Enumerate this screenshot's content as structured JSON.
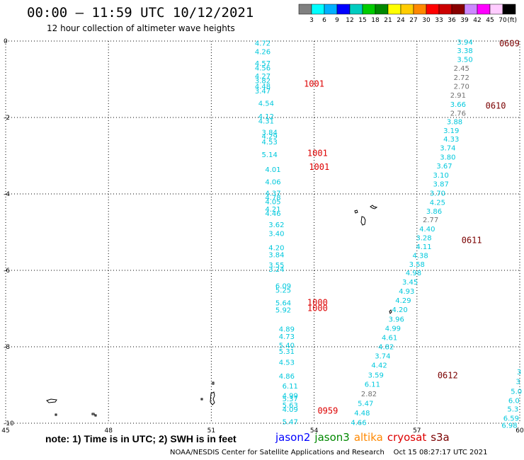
{
  "title": "00:00 – 11:59 UTC 10/12/2021",
  "subtitle": "12 hour collection of altimeter wave heights",
  "colorbar": {
    "colors": [
      "#808080",
      "#00ffff",
      "#00b0ff",
      "#0000ff",
      "#00ccc0",
      "#00cc00",
      "#008800",
      "#ffff00",
      "#ffcc00",
      "#ff8800",
      "#ff0000",
      "#cc0000",
      "#880000",
      "#cc88ff",
      "#ff00ff",
      "#ffccff",
      "#000000"
    ],
    "labels": [
      "3",
      "6",
      "9",
      "12",
      "15",
      "18",
      "21",
      "24",
      "27",
      "30",
      "33",
      "36",
      "39",
      "42",
      "45",
      "70"
    ],
    "unit": "(ft)"
  },
  "axes": {
    "x_ticks": [
      45,
      48,
      51,
      54,
      57,
      60
    ],
    "y_ticks": [
      0,
      -2,
      -4,
      -6,
      -8,
      -10
    ],
    "x_range": [
      45,
      60
    ],
    "y_range": [
      -10,
      0
    ]
  },
  "colors": {
    "cyan": "#00c8dc",
    "gray": "#707070",
    "red": "#dd0000",
    "darkred": "#7a0000"
  },
  "tracks": [
    {
      "name": "left-track",
      "points": [
        {
          "x": 52.5,
          "y": -0.05,
          "v": "4.72",
          "c": "cyan"
        },
        {
          "x": 52.5,
          "y": -0.27,
          "v": "4.26",
          "c": "cyan"
        },
        {
          "x": 52.5,
          "y": -0.57,
          "v": "4.57",
          "c": "cyan"
        },
        {
          "x": 52.5,
          "y": -0.69,
          "v": "4.56",
          "c": "cyan"
        },
        {
          "x": 52.5,
          "y": -0.91,
          "v": "4.27",
          "c": "cyan"
        },
        {
          "x": 52.5,
          "y": -1.03,
          "v": "3.82",
          "c": "cyan"
        },
        {
          "x": 52.5,
          "y": -1.18,
          "v": "4.48",
          "c": "cyan"
        },
        {
          "x": 52.5,
          "y": -1.3,
          "v": "3.47",
          "c": "cyan"
        },
        {
          "x": 52.6,
          "y": -1.62,
          "v": "4.54",
          "c": "cyan"
        },
        {
          "x": 52.6,
          "y": -1.96,
          "v": "4.12",
          "c": "cyan"
        },
        {
          "x": 52.6,
          "y": -2.08,
          "v": "4.31",
          "c": "cyan"
        },
        {
          "x": 52.7,
          "y": -2.38,
          "v": "3.84",
          "c": "cyan"
        },
        {
          "x": 52.7,
          "y": -2.48,
          "v": "4.29",
          "c": "cyan"
        },
        {
          "x": 52.7,
          "y": -2.63,
          "v": "4.53",
          "c": "cyan"
        },
        {
          "x": 52.7,
          "y": -2.96,
          "v": "5.14",
          "c": "cyan"
        },
        {
          "x": 52.8,
          "y": -3.35,
          "v": "4.01",
          "c": "cyan"
        },
        {
          "x": 52.8,
          "y": -3.68,
          "v": "4.06",
          "c": "cyan"
        },
        {
          "x": 52.8,
          "y": -3.97,
          "v": "4.37",
          "c": "cyan"
        },
        {
          "x": 52.8,
          "y": -4.08,
          "v": "4.78",
          "c": "cyan"
        },
        {
          "x": 52.8,
          "y": -4.19,
          "v": "4.05",
          "c": "cyan"
        },
        {
          "x": 52.8,
          "y": -4.39,
          "v": "4.21",
          "c": "cyan"
        },
        {
          "x": 52.8,
          "y": -4.5,
          "v": "4.46",
          "c": "cyan"
        },
        {
          "x": 52.9,
          "y": -4.8,
          "v": "3.62",
          "c": "cyan"
        },
        {
          "x": 52.9,
          "y": -5.03,
          "v": "3.40",
          "c": "cyan"
        },
        {
          "x": 52.9,
          "y": -5.4,
          "v": "4.20",
          "c": "cyan"
        },
        {
          "x": 52.9,
          "y": -5.58,
          "v": "3.84",
          "c": "cyan"
        },
        {
          "x": 52.9,
          "y": -5.85,
          "v": "3.55",
          "c": "cyan"
        },
        {
          "x": 52.9,
          "y": -5.96,
          "v": "3.24",
          "c": "cyan"
        },
        {
          "x": 53.1,
          "y": -6.4,
          "v": "6.09",
          "c": "cyan"
        },
        {
          "x": 53.1,
          "y": -6.51,
          "v": "5.25",
          "c": "cyan"
        },
        {
          "x": 53.1,
          "y": -6.84,
          "v": "5.64",
          "c": "cyan"
        },
        {
          "x": 53.1,
          "y": -7.03,
          "v": "5.92",
          "c": "cyan"
        },
        {
          "x": 53.2,
          "y": -7.53,
          "v": "4.89",
          "c": "cyan"
        },
        {
          "x": 53.2,
          "y": -7.72,
          "v": "4.73",
          "c": "cyan"
        },
        {
          "x": 53.2,
          "y": -7.95,
          "v": "5.40",
          "c": "cyan"
        },
        {
          "x": 53.2,
          "y": -8.11,
          "v": "5.31",
          "c": "cyan"
        },
        {
          "x": 53.2,
          "y": -8.4,
          "v": "4.53",
          "c": "cyan"
        },
        {
          "x": 53.2,
          "y": -8.76,
          "v": "4.86",
          "c": "cyan"
        },
        {
          "x": 53.3,
          "y": -9.02,
          "v": "6.11",
          "c": "cyan"
        },
        {
          "x": 53.3,
          "y": -9.27,
          "v": "4.99",
          "c": "cyan"
        },
        {
          "x": 53.3,
          "y": -9.35,
          "v": "5.37",
          "c": "cyan"
        },
        {
          "x": 53.3,
          "y": -9.52,
          "v": "5.63",
          "c": "cyan"
        },
        {
          "x": 53.3,
          "y": -9.63,
          "v": "4.09",
          "c": "cyan"
        },
        {
          "x": 53.3,
          "y": -9.95,
          "v": "5.47",
          "c": "cyan"
        }
      ]
    },
    {
      "name": "middle-track",
      "points": [
        {
          "x": 58.4,
          "y": -0.02,
          "v": "3.94",
          "c": "cyan"
        },
        {
          "x": 58.4,
          "y": -0.24,
          "v": "3.38",
          "c": "cyan"
        },
        {
          "x": 58.4,
          "y": -0.47,
          "v": "3.50",
          "c": "cyan"
        },
        {
          "x": 58.3,
          "y": -0.7,
          "v": "2.45",
          "c": "gray"
        },
        {
          "x": 58.3,
          "y": -0.94,
          "v": "2.72",
          "c": "gray"
        },
        {
          "x": 58.3,
          "y": -1.18,
          "v": "2.70",
          "c": "gray"
        },
        {
          "x": 58.2,
          "y": -1.41,
          "v": "2.91",
          "c": "gray"
        },
        {
          "x": 58.2,
          "y": -1.65,
          "v": "3.66",
          "c": "cyan"
        },
        {
          "x": 58.2,
          "y": -1.88,
          "v": "2.76",
          "c": "gray"
        },
        {
          "x": 58.1,
          "y": -2.1,
          "v": "3.88",
          "c": "cyan"
        },
        {
          "x": 58.0,
          "y": -2.33,
          "v": "3.19",
          "c": "cyan"
        },
        {
          "x": 58.0,
          "y": -2.56,
          "v": "4.33",
          "c": "cyan"
        },
        {
          "x": 57.9,
          "y": -2.79,
          "v": "3.74",
          "c": "cyan"
        },
        {
          "x": 57.9,
          "y": -3.03,
          "v": "3.80",
          "c": "cyan"
        },
        {
          "x": 57.8,
          "y": -3.26,
          "v": "3.67",
          "c": "cyan"
        },
        {
          "x": 57.7,
          "y": -3.5,
          "v": "3.10",
          "c": "cyan"
        },
        {
          "x": 57.7,
          "y": -3.73,
          "v": "3.87",
          "c": "cyan"
        },
        {
          "x": 57.6,
          "y": -3.97,
          "v": "3.70",
          "c": "cyan"
        },
        {
          "x": 57.6,
          "y": -4.21,
          "v": "4.25",
          "c": "cyan"
        },
        {
          "x": 57.5,
          "y": -4.44,
          "v": "3.86",
          "c": "cyan"
        },
        {
          "x": 57.4,
          "y": -4.67,
          "v": "2.77",
          "c": "gray"
        },
        {
          "x": 57.3,
          "y": -4.91,
          "v": "4.40",
          "c": "cyan"
        },
        {
          "x": 57.2,
          "y": -5.14,
          "v": "3.28",
          "c": "cyan"
        },
        {
          "x": 57.2,
          "y": -5.37,
          "v": "4.11",
          "c": "cyan"
        },
        {
          "x": 57.1,
          "y": -5.6,
          "v": "4.38",
          "c": "cyan"
        },
        {
          "x": 57.0,
          "y": -5.83,
          "v": "3.58",
          "c": "cyan"
        },
        {
          "x": 56.9,
          "y": -6.06,
          "v": "4.98",
          "c": "cyan"
        },
        {
          "x": 56.8,
          "y": -6.3,
          "v": "3.45",
          "c": "cyan"
        },
        {
          "x": 56.7,
          "y": -6.54,
          "v": "4.93",
          "c": "cyan"
        },
        {
          "x": 56.6,
          "y": -6.78,
          "v": "4.29",
          "c": "cyan"
        },
        {
          "x": 56.5,
          "y": -7.02,
          "v": "4.20",
          "c": "cyan"
        },
        {
          "x": 56.4,
          "y": -7.27,
          "v": "3.96",
          "c": "cyan"
        },
        {
          "x": 56.3,
          "y": -7.51,
          "v": "4.99",
          "c": "cyan"
        },
        {
          "x": 56.2,
          "y": -7.75,
          "v": "4.61",
          "c": "cyan"
        },
        {
          "x": 56.1,
          "y": -7.99,
          "v": "4.82",
          "c": "cyan"
        },
        {
          "x": 56.0,
          "y": -8.23,
          "v": "3.74",
          "c": "cyan"
        },
        {
          "x": 55.9,
          "y": -8.47,
          "v": "4.42",
          "c": "cyan"
        },
        {
          "x": 55.8,
          "y": -8.73,
          "v": "3.59",
          "c": "cyan"
        },
        {
          "x": 55.7,
          "y": -8.97,
          "v": "6.11",
          "c": "cyan"
        },
        {
          "x": 55.6,
          "y": -9.22,
          "v": "2.82",
          "c": "gray"
        },
        {
          "x": 55.5,
          "y": -9.47,
          "v": "5.47",
          "c": "cyan"
        },
        {
          "x": 55.4,
          "y": -9.72,
          "v": "4.48",
          "c": "cyan"
        },
        {
          "x": 55.3,
          "y": -9.97,
          "v": "4.66",
          "c": "cyan"
        }
      ]
    },
    {
      "name": "right-track",
      "points": [
        {
          "x": 59.98,
          "y": -8.65,
          "v": "3",
          "c": "cyan"
        },
        {
          "x": 59.95,
          "y": -8.9,
          "v": "3",
          "c": "cyan"
        },
        {
          "x": 59.9,
          "y": -9.16,
          "v": "5.0",
          "c": "cyan"
        },
        {
          "x": 59.83,
          "y": -9.4,
          "v": "6.0",
          "c": "cyan"
        },
        {
          "x": 59.8,
          "y": -9.62,
          "v": "5.3",
          "c": "cyan"
        },
        {
          "x": 59.75,
          "y": -9.86,
          "v": "6.59",
          "c": "cyan"
        },
        {
          "x": 59.7,
          "y": -10.05,
          "v": "6.98",
          "c": "cyan"
        }
      ]
    }
  ],
  "annotations": [
    {
      "x": 53.7,
      "y": -1.1,
      "v": "1001",
      "c": "red"
    },
    {
      "x": 53.8,
      "y": -2.92,
      "v": "1001",
      "c": "red"
    },
    {
      "x": 53.85,
      "y": -3.28,
      "v": "1001",
      "c": "red"
    },
    {
      "x": 53.8,
      "y": -6.82,
      "v": "1000",
      "c": "red"
    },
    {
      "x": 53.8,
      "y": -6.97,
      "v": "1000",
      "c": "red"
    },
    {
      "x": 54.1,
      "y": -9.66,
      "v": "0959",
      "c": "red"
    },
    {
      "x": 59.4,
      "y": -0.05,
      "v": "0609",
      "c": "darkred"
    },
    {
      "x": 59.0,
      "y": -1.68,
      "v": "0610",
      "c": "darkred"
    },
    {
      "x": 58.3,
      "y": -5.19,
      "v": "0611",
      "c": "darkred"
    },
    {
      "x": 57.6,
      "y": -8.73,
      "v": "0612",
      "c": "darkred"
    }
  ],
  "note": "note: 1) Time is in UTC; 2) SWH is in feet",
  "legend": [
    {
      "label": "jason2",
      "color": "#0000ff"
    },
    {
      "label": "jason3",
      "color": "#008800"
    },
    {
      "label": "altika",
      "color": "#ff8800"
    },
    {
      "label": "cryosat",
      "color": "#dd0000"
    },
    {
      "label": "s3a",
      "color": "#7a0000"
    }
  ],
  "footer": "NOAA/NESDIS Center for Satellite Applications and Research    Oct 15 08:27:17 UTC 2021"
}
